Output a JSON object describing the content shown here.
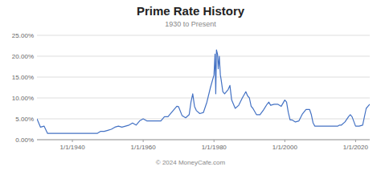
{
  "chart_data": {
    "type": "line",
    "title": "Prime Rate History",
    "subtitle": "1930 to Present",
    "footer": "© 2024 MoneyCafe.com",
    "color": "#4472c4",
    "grid": true,
    "xlim": [
      1930,
      2024
    ],
    "ylim": [
      0,
      25
    ],
    "yticks": [
      {
        "value": 0,
        "label": "0.00%"
      },
      {
        "value": 5,
        "label": "5.00%"
      },
      {
        "value": 10,
        "label": "10.00%"
      },
      {
        "value": 15,
        "label": "15.00%"
      },
      {
        "value": 20,
        "label": "20.00%"
      },
      {
        "value": 25,
        "label": "25.00%"
      }
    ],
    "xticks": [
      {
        "value": 1940,
        "label": "1/1/1940"
      },
      {
        "value": 1960,
        "label": "1/1/1960"
      },
      {
        "value": 1980,
        "label": "1/1/1980"
      },
      {
        "value": 2000,
        "label": "1/1/2000"
      },
      {
        "value": 2020,
        "label": "1/1/2020"
      }
    ],
    "x": [
      1930.0,
      1930.5,
      1931.0,
      1932.0,
      1933.0,
      1934.0,
      1935.0,
      1936.0,
      1937.0,
      1938.0,
      1939.0,
      1940.0,
      1941.0,
      1942.0,
      1943.0,
      1944.0,
      1945.0,
      1946.0,
      1947.0,
      1948.0,
      1949.0,
      1950.0,
      1951.0,
      1952.0,
      1953.0,
      1954.0,
      1955.0,
      1956.0,
      1957.0,
      1958.0,
      1959.0,
      1960.0,
      1961.0,
      1962.0,
      1963.0,
      1964.0,
      1965.0,
      1966.0,
      1967.0,
      1968.0,
      1969.5,
      1970.0,
      1971.0,
      1972.0,
      1973.0,
      1973.5,
      1974.0,
      1974.5,
      1975.0,
      1976.0,
      1977.0,
      1978.0,
      1979.0,
      1980.0,
      1980.3,
      1980.5,
      1980.7,
      1981.0,
      1981.2,
      1981.5,
      1981.8,
      1982.0,
      1982.5,
      1983.0,
      1984.0,
      1984.5,
      1985.0,
      1986.0,
      1987.0,
      1988.0,
      1989.0,
      1989.5,
      1990.0,
      1990.5,
      1991.0,
      1992.0,
      1993.0,
      1994.0,
      1995.0,
      1995.5,
      1996.0,
      1997.0,
      1998.0,
      1999.0,
      2000.0,
      2000.5,
      2001.0,
      2001.5,
      2002.0,
      2003.0,
      2004.0,
      2005.0,
      2006.0,
      2007.0,
      2007.5,
      2008.0,
      2008.5,
      2009.0,
      2010.0,
      2011.0,
      2012.0,
      2013.0,
      2014.0,
      2015.0,
      2015.5,
      2016.0,
      2017.0,
      2018.0,
      2018.5,
      2019.0,
      2020.0,
      2020.5,
      2021.0,
      2022.0,
      2022.5,
      2023.0,
      2023.5,
      2024.0
    ],
    "values": [
      5.0,
      4.0,
      3.0,
      3.25,
      1.5,
      1.5,
      1.5,
      1.5,
      1.5,
      1.5,
      1.5,
      1.5,
      1.5,
      1.5,
      1.5,
      1.5,
      1.5,
      1.5,
      1.5,
      2.0,
      2.0,
      2.25,
      2.5,
      3.0,
      3.25,
      3.0,
      3.25,
      3.5,
      4.0,
      3.5,
      4.5,
      5.0,
      4.5,
      4.5,
      4.5,
      4.5,
      4.5,
      5.5,
      5.5,
      6.5,
      8.0,
      7.9,
      5.75,
      5.25,
      6.0,
      9.0,
      11.0,
      8.0,
      7.0,
      6.25,
      6.5,
      9.0,
      12.5,
      15.5,
      20.5,
      11.0,
      21.5,
      20.5,
      17.0,
      20.0,
      15.5,
      14.5,
      11.5,
      11.0,
      12.0,
      13.0,
      9.5,
      7.5,
      8.25,
      10.0,
      11.5,
      10.5,
      10.0,
      8.0,
      7.5,
      6.0,
      6.0,
      7.15,
      8.5,
      9.0,
      8.25,
      8.5,
      8.5,
      8.0,
      9.5,
      9.0,
      6.5,
      4.75,
      4.75,
      4.25,
      4.5,
      6.19,
      7.25,
      7.25,
      6.0,
      4.0,
      3.25,
      3.25,
      3.25,
      3.25,
      3.25,
      3.25,
      3.25,
      3.25,
      3.5,
      3.5,
      4.25,
      5.5,
      6.0,
      5.5,
      3.25,
      3.25,
      3.25,
      3.5,
      5.5,
      7.5,
      8.0,
      8.5
    ]
  }
}
